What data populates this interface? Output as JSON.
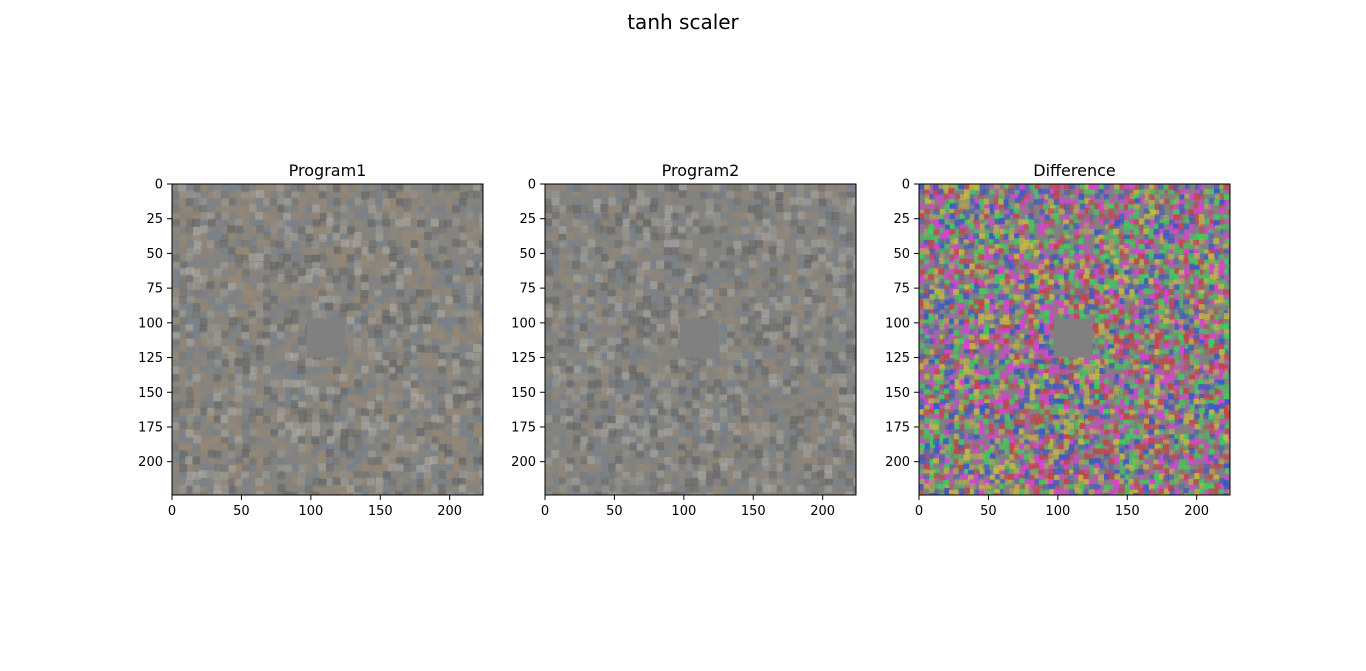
{
  "chart_data": {
    "type": "heatmap",
    "suptitle": "tanh scaler",
    "panels": [
      {
        "title": "Program1",
        "image_size": [
          224,
          224
        ],
        "xlim": [
          0,
          224
        ],
        "ylim": [
          224,
          0
        ],
        "xticks": [
          0,
          50,
          100,
          150,
          200
        ],
        "yticks": [
          0,
          25,
          50,
          75,
          100,
          125,
          150,
          175,
          200
        ],
        "occlusion_patch": {
          "x": [
            97,
            125
          ],
          "y": [
            97,
            125
          ],
          "color": "#808080"
        },
        "texture": "muted-noise",
        "colors": {
          "base": "#86847f",
          "warm": "#a08a70",
          "cool": "#6e7f92",
          "light": "#b5b2aa",
          "dark": "#585a5c"
        }
      },
      {
        "title": "Program2",
        "image_size": [
          224,
          224
        ],
        "xlim": [
          0,
          224
        ],
        "ylim": [
          224,
          0
        ],
        "xticks": [
          0,
          50,
          100,
          150,
          200
        ],
        "yticks": [
          0,
          25,
          50,
          75,
          100,
          125,
          150,
          175,
          200
        ],
        "occlusion_patch": {
          "x": [
            97,
            125
          ],
          "y": [
            97,
            125
          ],
          "color": "#808080"
        },
        "texture": "muted-noise",
        "colors": {
          "base": "#84837f",
          "warm": "#9a8a74",
          "cool": "#718093",
          "light": "#b0aea8",
          "dark": "#5b5d5f"
        }
      },
      {
        "title": "Difference",
        "image_size": [
          224,
          224
        ],
        "xlim": [
          0,
          224
        ],
        "ylim": [
          224,
          0
        ],
        "xticks": [
          0,
          50,
          100,
          150,
          200
        ],
        "yticks": [
          0,
          25,
          50,
          75,
          100,
          125,
          150,
          175,
          200
        ],
        "occlusion_patch": {
          "x": [
            97,
            125
          ],
          "y": [
            97,
            125
          ],
          "color": "#808080"
        },
        "texture": "vivid-noise",
        "colors": {
          "base": "#808080",
          "green": "#3fcf5a",
          "magenta": "#e03cd8",
          "blue": "#3a55c8",
          "red": "#c8404a",
          "yellow": "#c8b840"
        }
      }
    ]
  }
}
